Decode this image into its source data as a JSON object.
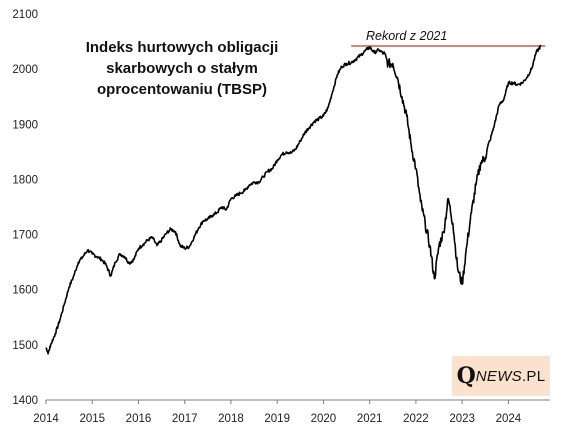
{
  "chart_data": {
    "type": "line",
    "title_lines": [
      "Indeks hurtowych obligacji",
      "skarbowych o stałym",
      "oprocentowaniu (TBSP)"
    ],
    "xlabel": "",
    "ylabel": "",
    "xlim": [
      2014,
      2024.9
    ],
    "ylim": [
      1400,
      2100
    ],
    "x_ticks": [
      "2014",
      "2015",
      "2016",
      "2017",
      "2018",
      "2019",
      "2020",
      "2021",
      "2022",
      "2023",
      "2024"
    ],
    "y_ticks": [
      "1400",
      "1500",
      "1600",
      "1700",
      "1800",
      "1900",
      "2000",
      "2100"
    ],
    "grid": false,
    "line_color": "#000000",
    "reference_line": {
      "label": "Rekord z 2021",
      "value": 2042,
      "x_from": 2020.6,
      "x_to": 2024.8,
      "color": "#c0392b"
    },
    "series": [
      {
        "x": [
          2014.0,
          2014.05,
          2014.1,
          2014.2,
          2014.3,
          2014.4,
          2014.5,
          2014.6,
          2014.7,
          2014.8,
          2014.9,
          2015.0,
          2015.1,
          2015.2,
          2015.3,
          2015.4,
          2015.5,
          2015.6,
          2015.7,
          2015.8,
          2015.9,
          2016.0,
          2016.1,
          2016.2,
          2016.3,
          2016.4,
          2016.5,
          2016.6,
          2016.7,
          2016.8,
          2016.9,
          2017.0,
          2017.1,
          2017.2,
          2017.3,
          2017.4,
          2017.5,
          2017.6,
          2017.7,
          2017.8,
          2017.9,
          2018.0,
          2018.1,
          2018.2,
          2018.3,
          2018.4,
          2018.5,
          2018.6,
          2018.7,
          2018.8,
          2018.9,
          2019.0,
          2019.1,
          2019.2,
          2019.3,
          2019.4,
          2019.5,
          2019.6,
          2019.7,
          2019.8,
          2019.9,
          2020.0,
          2020.1,
          2020.2,
          2020.3,
          2020.4,
          2020.5,
          2020.6,
          2020.7,
          2020.8,
          2020.9,
          2021.0,
          2021.1,
          2021.2,
          2021.3,
          2021.4,
          2021.5,
          2021.6,
          2021.7,
          2021.8,
          2021.9,
          2022.0,
          2022.1,
          2022.2,
          2022.3,
          2022.4,
          2022.5,
          2022.6,
          2022.7,
          2022.8,
          2022.9,
          2023.0,
          2023.1,
          2023.2,
          2023.3,
          2023.4,
          2023.5,
          2023.6,
          2023.7,
          2023.8,
          2023.9,
          2024.0,
          2024.1,
          2024.2,
          2024.3,
          2024.4,
          2024.5,
          2024.6,
          2024.7
        ],
        "y": [
          1495,
          1485,
          1500,
          1520,
          1545,
          1575,
          1605,
          1625,
          1650,
          1660,
          1672,
          1665,
          1660,
          1655,
          1645,
          1625,
          1650,
          1665,
          1660,
          1648,
          1655,
          1675,
          1682,
          1690,
          1695,
          1680,
          1690,
          1702,
          1710,
          1705,
          1680,
          1675,
          1678,
          1695,
          1712,
          1725,
          1728,
          1735,
          1740,
          1750,
          1745,
          1765,
          1770,
          1775,
          1780,
          1790,
          1795,
          1795,
          1805,
          1815,
          1820,
          1835,
          1845,
          1850,
          1848,
          1855,
          1870,
          1885,
          1895,
          1905,
          1910,
          1915,
          1930,
          1960,
          1990,
          2005,
          2010,
          2012,
          2018,
          2025,
          2033,
          2040,
          2030,
          2035,
          2028,
          2010,
          2010,
          1985,
          1950,
          1915,
          1860,
          1820,
          1760,
          1720,
          1680,
          1620,
          1680,
          1705,
          1765,
          1720,
          1640,
          1610,
          1680,
          1740,
          1790,
          1830,
          1840,
          1870,
          1900,
          1935,
          1945,
          1975,
          1975,
          1972,
          1975,
          1985,
          2000,
          2030,
          2042
        ]
      }
    ]
  },
  "logo": {
    "q": "Q",
    "news": "NEWS",
    "pl": ".PL"
  }
}
